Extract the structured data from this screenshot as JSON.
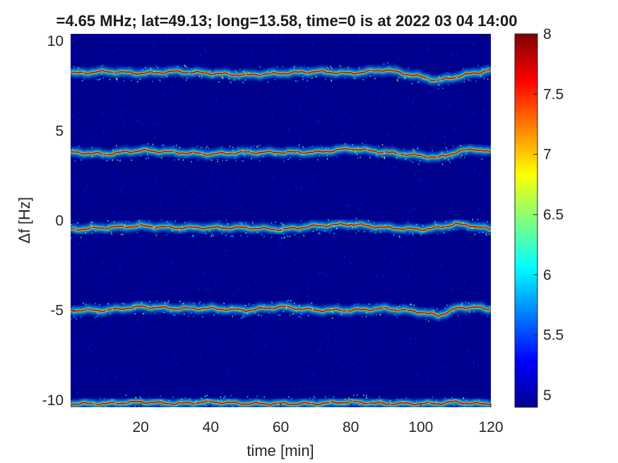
{
  "chart_data": {
    "type": "heatmap",
    "title": "=4.65 MHz;  lat=49.13; long=13.58, time=0 is at 2022 03 04 14:00",
    "xlabel": "time [min]",
    "ylabel": "Δf [Hz]",
    "xlim": [
      0,
      120
    ],
    "ylim": [
      -10.4,
      10.4
    ],
    "xticks": [
      "20",
      "40",
      "60",
      "80",
      "100",
      "120"
    ],
    "xtick_values": [
      20,
      40,
      60,
      80,
      100,
      120
    ],
    "yticks": [
      "10",
      "5",
      "0",
      "-5",
      "-10"
    ],
    "ytick_values": [
      10,
      5,
      0,
      -5,
      -10
    ],
    "colormap": "jet",
    "clim": [
      4.9,
      8
    ],
    "colorbar_ticks": [
      "8",
      "7.5",
      "7",
      "6.5",
      "6",
      "5.5",
      "5"
    ],
    "colorbar_values": [
      8,
      7.5,
      7,
      6.5,
      6,
      5.5,
      5
    ],
    "background_level": 5.0,
    "series": [
      {
        "time": [
          0,
          10,
          20,
          30,
          40,
          50,
          60,
          70,
          80,
          90,
          100,
          105,
          110,
          115,
          120
        ],
        "df": [
          8.2,
          8.3,
          8.2,
          8.3,
          8.2,
          8.1,
          8.2,
          8.3,
          8.2,
          8.4,
          8.0,
          7.8,
          8.0,
          8.2,
          8.4
        ]
      },
      {
        "time": [
          0,
          10,
          20,
          30,
          40,
          50,
          60,
          70,
          80,
          90,
          100,
          105,
          110,
          115,
          120
        ],
        "df": [
          3.8,
          3.7,
          3.9,
          3.8,
          3.7,
          3.8,
          3.8,
          3.8,
          4.0,
          3.8,
          3.6,
          3.5,
          3.8,
          4.0,
          3.8
        ]
      },
      {
        "time": [
          0,
          10,
          20,
          30,
          40,
          50,
          60,
          70,
          80,
          90,
          100,
          105,
          110,
          115,
          120
        ],
        "df": [
          -0.5,
          -0.4,
          -0.3,
          -0.4,
          -0.4,
          -0.4,
          -0.5,
          -0.3,
          -0.2,
          -0.4,
          -0.5,
          -0.4,
          -0.2,
          -0.3,
          -0.5
        ]
      },
      {
        "time": [
          0,
          10,
          20,
          30,
          40,
          50,
          60,
          70,
          80,
          90,
          100,
          105,
          110,
          115,
          120
        ],
        "df": [
          -5.0,
          -5.0,
          -4.8,
          -4.9,
          -4.9,
          -5.0,
          -4.8,
          -5.0,
          -5.0,
          -4.9,
          -5.1,
          -5.3,
          -4.9,
          -4.8,
          -5.0
        ]
      },
      {
        "time": [
          0,
          10,
          20,
          30,
          40,
          50,
          60,
          70,
          80,
          90,
          100,
          105,
          110,
          115,
          120
        ],
        "df": [
          -10.2,
          -10.2,
          -10.1,
          -10.2,
          -10.1,
          -10.2,
          -10.2,
          -10.2,
          -10.1,
          -10.2,
          -10.2,
          -10.2,
          -10.1,
          -10.2,
          -10.2
        ]
      }
    ]
  }
}
